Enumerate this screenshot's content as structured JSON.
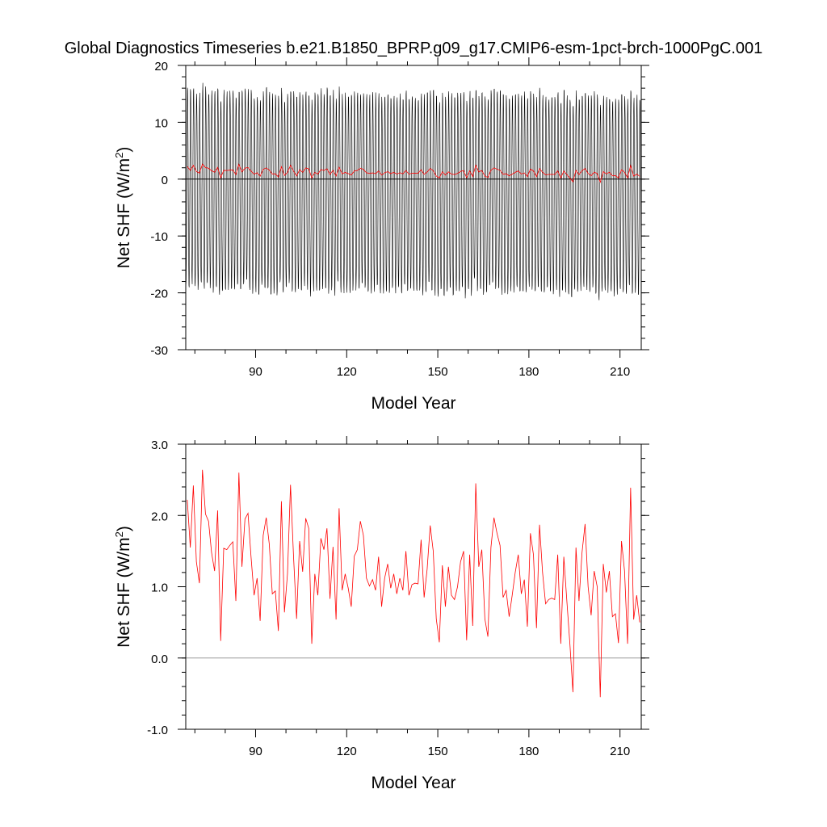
{
  "title": "Global Diagnostics Timeseries b.e21.B1850_BPRP.g09_g17.CMIP6-esm-1pct-brch-1000PgC.001",
  "chart_data": [
    {
      "type": "line",
      "panel": "monthly",
      "xlabel": "Model Year",
      "ylabel": "Net SHF (W/m²)",
      "ylabel_main": "Net SHF (W/m",
      "ylabel_sup": "2",
      "ylabel_tail": ")",
      "xlim": [
        67,
        217
      ],
      "ylim": [
        -30,
        20
      ],
      "xticks": [
        90,
        120,
        150,
        180,
        210
      ],
      "xtick_labels": [
        "90",
        "120",
        "150",
        "180",
        "210"
      ],
      "yticks": [
        -30,
        -20,
        -10,
        0,
        10,
        20
      ],
      "ytick_labels": [
        "-30",
        "-20",
        "-10",
        "0",
        "10",
        "20"
      ],
      "zero_line_color": "#000000",
      "series": [
        {
          "color": "#000000",
          "description_seasonal": {
            "annual_max_mean": 14.0,
            "annual_min_mean": -21.0
          },
          "values": []
        },
        {
          "color": "#ff0000",
          "values_ref": "annual"
        }
      ]
    },
    {
      "type": "line",
      "panel": "annual",
      "xlabel": "Model Year",
      "ylabel": "Net SHF (W/m²)",
      "ylabel_main": "Net SHF (W/m",
      "ylabel_sup": "2",
      "ylabel_tail": ")",
      "xlim": [
        67,
        217
      ],
      "ylim": [
        -1.0,
        3.0
      ],
      "xticks": [
        90,
        120,
        150,
        180,
        210
      ],
      "xtick_labels": [
        "90",
        "120",
        "150",
        "180",
        "210"
      ],
      "yticks": [
        -1.0,
        0.0,
        1.0,
        2.0,
        3.0
      ],
      "ytick_labels": [
        "-1.0",
        "0.0",
        "1.0",
        "2.0",
        "3.0"
      ],
      "zero_line_color": "#999999",
      "x_start": 67,
      "series": [
        {
          "color": "#ff0000",
          "values": [
            2.22,
            1.55,
            2.42,
            1.35,
            1.05,
            2.64,
            2.02,
            1.92,
            1.48,
            1.22,
            2.07,
            0.24,
            1.54,
            1.52,
            1.58,
            1.63,
            0.8,
            2.6,
            1.28,
            1.95,
            2.03,
            1.42,
            0.88,
            1.12,
            0.52,
            1.72,
            1.97,
            1.6,
            0.9,
            0.94,
            0.38,
            2.2,
            0.64,
            1.18,
            2.43,
            1.42,
            0.55,
            1.64,
            1.21,
            1.96,
            1.82,
            0.2,
            1.18,
            0.88,
            1.68,
            1.52,
            1.82,
            0.83,
            1.56,
            0.54,
            2.1,
            0.95,
            1.18,
            0.98,
            0.72,
            1.43,
            1.52,
            1.92,
            1.72,
            1.12,
            1.01,
            1.1,
            0.95,
            1.42,
            0.72,
            1.12,
            1.32,
            0.98,
            1.18,
            0.9,
            1.12,
            0.95,
            1.5,
            0.88,
            1.03,
            1.05,
            1.04,
            1.66,
            0.85,
            1.25,
            1.86,
            1.5,
            0.55,
            0.22,
            1.3,
            0.72,
            1.28,
            0.88,
            0.82,
            1.0,
            1.35,
            1.5,
            0.25,
            1.45,
            0.45,
            2.45,
            1.28,
            1.52,
            0.55,
            0.3,
            1.55,
            1.97,
            1.75,
            1.58,
            0.85,
            0.95,
            0.58,
            0.88,
            1.2,
            1.45,
            0.9,
            1.1,
            0.44,
            1.75,
            1.45,
            0.42,
            1.87,
            1.2,
            0.76,
            0.82,
            0.84,
            0.82,
            1.45,
            0.2,
            1.42,
            0.8,
            0.2,
            -0.48,
            1.55,
            0.8,
            1.48,
            1.88,
            1.0,
            0.6,
            1.22,
            1.0,
            -0.55,
            1.32,
            0.92,
            1.22,
            0.58,
            0.62,
            0.21,
            1.64,
            1.22,
            0.2,
            2.39,
            0.54,
            0.88,
            0.5
          ]
        }
      ]
    }
  ]
}
